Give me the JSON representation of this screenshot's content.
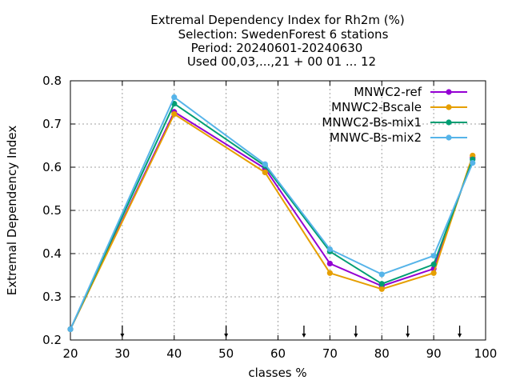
{
  "chart_data": {
    "type": "line",
    "title_lines": [
      "Extremal Dependency Index  for Rh2m (%)",
      "Selection: SwedenForest      6 stations",
      "Period: 20240601-20240630",
      "Used 00,03,...,21 + 00 01 ... 12"
    ],
    "xlabel": "classes %",
    "ylabel": "Extremal Dependency Index",
    "xlim": [
      20,
      100
    ],
    "ylim": [
      0.2,
      0.8
    ],
    "xticks": [
      "20",
      "30",
      "40",
      "50",
      "60",
      "70",
      "80",
      "90",
      "100"
    ],
    "yticks": [
      "0.2",
      "0.3",
      "0.4",
      "0.5",
      "0.6",
      "0.7",
      "0.8"
    ],
    "grid": true,
    "legend_position": "top-right",
    "arrow_marks_x": [
      30,
      50,
      65,
      75,
      85,
      95
    ],
    "series": [
      {
        "name": "MNWC2-ref",
        "color": "#9400d3",
        "x": [
          20,
          40,
          57.5,
          70,
          80,
          90,
          97.5
        ],
        "y": [
          0.225,
          0.728,
          0.597,
          0.377,
          0.325,
          0.365,
          0.622
        ]
      },
      {
        "name": "MNWC2-Bscale",
        "color": "#e69f00",
        "x": [
          20,
          40,
          57.5,
          70,
          80,
          90,
          97.5
        ],
        "y": [
          0.225,
          0.723,
          0.588,
          0.355,
          0.318,
          0.355,
          0.627
        ]
      },
      {
        "name": "MNWC2-Bs-mix1",
        "color": "#009e73",
        "x": [
          20,
          40,
          57.5,
          70,
          80,
          90,
          97.5
        ],
        "y": [
          0.225,
          0.747,
          0.603,
          0.405,
          0.33,
          0.375,
          0.618
        ]
      },
      {
        "name": "MNWC-Bs-mix2",
        "color": "#56b4e9",
        "x": [
          20,
          40,
          57.5,
          70,
          80,
          90,
          97.5
        ],
        "y": [
          0.225,
          0.762,
          0.607,
          0.41,
          0.352,
          0.395,
          0.61
        ]
      }
    ]
  }
}
